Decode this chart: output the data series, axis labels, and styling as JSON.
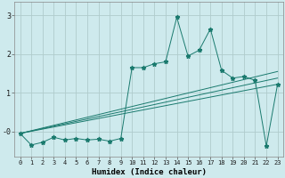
{
  "title": "",
  "xlabel": "Humidex (Indice chaleur)",
  "background_color": "#ceeaed",
  "grid_color": "#b0cccc",
  "line_color": "#1a7a6e",
  "xlim": [
    -0.5,
    23.5
  ],
  "ylim": [
    -0.65,
    3.35
  ],
  "x_ticks": [
    0,
    1,
    2,
    3,
    4,
    5,
    6,
    7,
    8,
    9,
    10,
    11,
    12,
    13,
    14,
    15,
    16,
    17,
    18,
    19,
    20,
    21,
    22,
    23
  ],
  "y_ticks": [
    0,
    1,
    2,
    3
  ],
  "y_tick_labels": [
    "-0",
    "1",
    "2",
    "3"
  ],
  "main_x": [
    0,
    1,
    2,
    3,
    4,
    5,
    6,
    7,
    8,
    9,
    10,
    11,
    12,
    13,
    14,
    15,
    16,
    17,
    18,
    19,
    20,
    21,
    22,
    23
  ],
  "main_y": [
    -0.05,
    -0.35,
    -0.28,
    -0.15,
    -0.22,
    -0.18,
    -0.22,
    -0.2,
    -0.25,
    -0.18,
    1.65,
    1.65,
    1.75,
    1.8,
    2.95,
    1.95,
    2.1,
    2.65,
    1.58,
    1.38,
    1.42,
    1.32,
    -0.38,
    1.22
  ],
  "line1_x": [
    0,
    23
  ],
  "line1_y": [
    -0.05,
    1.55
  ],
  "line2_x": [
    0,
    23
  ],
  "line2_y": [
    -0.05,
    1.38
  ],
  "line3_x": [
    0,
    23
  ],
  "line3_y": [
    -0.05,
    1.22
  ]
}
